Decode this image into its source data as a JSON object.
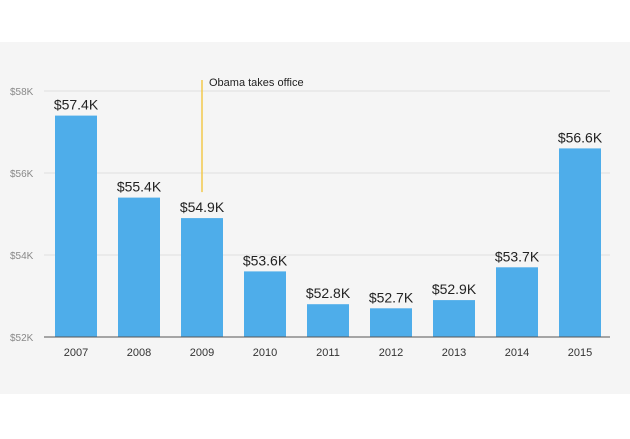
{
  "chart_data": {
    "type": "bar",
    "title": "",
    "xlabel": "",
    "ylabel": "",
    "categories": [
      "2007",
      "2008",
      "2009",
      "2010",
      "2011",
      "2012",
      "2013",
      "2014",
      "2015"
    ],
    "values": [
      57.4,
      55.4,
      54.9,
      53.6,
      52.8,
      52.7,
      52.9,
      53.7,
      56.6
    ],
    "value_labels": [
      "$57.4K",
      "$55.4K",
      "$54.9K",
      "$53.6K",
      "$52.8K",
      "$52.7K",
      "$52.9K",
      "$53.7K",
      "$56.6K"
    ],
    "ylim": [
      52,
      58
    ],
    "yticks": [
      52,
      54,
      56,
      58
    ],
    "ytick_labels": [
      "$52K",
      "$54K",
      "$56K",
      "$58K"
    ],
    "grid": true,
    "bar_color": "#4eadea",
    "annotation": {
      "text": "Obama takes office",
      "category": "2009",
      "color": "#f2c84b"
    }
  }
}
